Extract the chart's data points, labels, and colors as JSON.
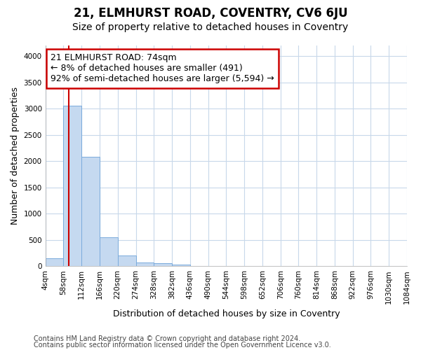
{
  "title": "21, ELMHURST ROAD, COVENTRY, CV6 6JU",
  "subtitle": "Size of property relative to detached houses in Coventry",
  "xlabel": "Distribution of detached houses by size in Coventry",
  "ylabel": "Number of detached properties",
  "bin_edges": [
    4,
    58,
    112,
    166,
    220,
    274,
    328,
    382,
    436,
    490,
    544,
    598,
    652,
    706,
    760,
    814,
    868,
    922,
    976,
    1030,
    1084
  ],
  "bar_heights": [
    150,
    3050,
    2075,
    550,
    205,
    75,
    50,
    25,
    0,
    0,
    0,
    0,
    0,
    0,
    0,
    0,
    0,
    0,
    0,
    0
  ],
  "bar_color": "#c5d9f0",
  "bar_edgecolor": "#7aabdc",
  "property_line_x": 74,
  "annotation_line1": "21 ELMHURST ROAD: 74sqm",
  "annotation_line2": "← 8% of detached houses are smaller (491)",
  "annotation_line3": "92% of semi-detached houses are larger (5,594) →",
  "annotation_box_color": "#ffffff",
  "annotation_border_color": "#cc0000",
  "ylim": [
    0,
    4200
  ],
  "yticks": [
    0,
    500,
    1000,
    1500,
    2000,
    2500,
    3000,
    3500,
    4000
  ],
  "line_color": "#cc0000",
  "footer1": "Contains HM Land Registry data © Crown copyright and database right 2024.",
  "footer2": "Contains public sector information licensed under the Open Government Licence v3.0.",
  "bg_color": "#ffffff",
  "plot_bg_color": "#ffffff",
  "grid_color": "#c8d8ea",
  "title_fontsize": 12,
  "subtitle_fontsize": 10,
  "axis_label_fontsize": 9,
  "tick_fontsize": 7.5,
  "annotation_fontsize": 9,
  "footer_fontsize": 7
}
